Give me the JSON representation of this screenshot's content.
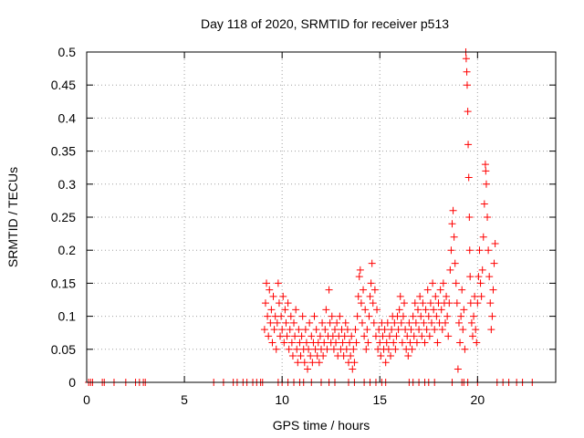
{
  "chart_data": {
    "type": "scatter",
    "title": "Day 118 of 2020, SRMTID for receiver p513",
    "xlabel": "GPS time / hours",
    "ylabel": "SRMTID / TECUs",
    "xlim": [
      0,
      24
    ],
    "ylim": [
      0,
      0.5
    ],
    "x_ticks": [
      0,
      5,
      10,
      15,
      20
    ],
    "x_tick_labels": [
      "0",
      "5",
      "10",
      "15",
      "20"
    ],
    "y_ticks": [
      0,
      0.05,
      0.1,
      0.15,
      0.2,
      0.25,
      0.3,
      0.35,
      0.4,
      0.45,
      0.5
    ],
    "y_tick_labels": [
      "0",
      "0.05",
      "0.1",
      "0.15",
      "0.2",
      "0.25",
      "0.3",
      "0.35",
      "0.4",
      "0.45",
      "0.5"
    ],
    "grid": true,
    "marker": "+",
    "series_color": "#ff0000",
    "series": [
      {
        "name": "SRMTID",
        "points": [
          [
            0.1,
            0
          ],
          [
            0.2,
            0
          ],
          [
            0.3,
            0
          ],
          [
            0.8,
            0
          ],
          [
            0.9,
            0
          ],
          [
            1.4,
            0
          ],
          [
            2.0,
            0
          ],
          [
            2.5,
            0
          ],
          [
            2.7,
            0
          ],
          [
            2.9,
            0
          ],
          [
            3.0,
            0
          ],
          [
            6.5,
            0
          ],
          [
            7.0,
            0
          ],
          [
            7.5,
            0
          ],
          [
            7.7,
            0
          ],
          [
            8.0,
            0
          ],
          [
            8.2,
            0
          ],
          [
            8.5,
            0
          ],
          [
            8.7,
            0
          ],
          [
            8.9,
            0
          ],
          [
            9.0,
            0
          ],
          [
            9.8,
            0
          ],
          [
            10.0,
            0
          ],
          [
            10.3,
            0
          ],
          [
            10.6,
            0
          ],
          [
            10.9,
            0
          ],
          [
            11.1,
            0
          ],
          [
            11.5,
            0
          ],
          [
            12.0,
            0
          ],
          [
            12.4,
            0
          ],
          [
            12.7,
            0
          ],
          [
            13.4,
            0
          ],
          [
            13.7,
            0
          ],
          [
            14.2,
            0
          ],
          [
            14.5,
            0
          ],
          [
            14.8,
            0
          ],
          [
            15.1,
            0
          ],
          [
            15.3,
            0
          ],
          [
            16.5,
            0
          ],
          [
            16.7,
            0
          ],
          [
            17.0,
            0
          ],
          [
            17.3,
            0
          ],
          [
            17.5,
            0
          ],
          [
            17.8,
            0
          ],
          [
            18.7,
            0
          ],
          [
            19.2,
            0
          ],
          [
            19.3,
            0
          ],
          [
            19.5,
            0
          ],
          [
            20.0,
            0
          ],
          [
            21.0,
            0
          ],
          [
            21.3,
            0
          ],
          [
            21.6,
            0
          ],
          [
            22.0,
            0
          ],
          [
            22.3,
            0
          ],
          [
            22.8,
            0
          ],
          [
            9.1,
            0.08
          ],
          [
            9.15,
            0.12
          ],
          [
            9.2,
            0.15
          ],
          [
            9.25,
            0.1
          ],
          [
            9.3,
            0.07
          ],
          [
            9.35,
            0.14
          ],
          [
            9.4,
            0.09
          ],
          [
            9.45,
            0.11
          ],
          [
            9.5,
            0.06
          ],
          [
            9.55,
            0.13
          ],
          [
            9.6,
            0.08
          ],
          [
            9.65,
            0.1
          ],
          [
            9.7,
            0.05
          ],
          [
            9.75,
            0.09
          ],
          [
            9.8,
            0.15
          ],
          [
            9.85,
            0.12
          ],
          [
            9.9,
            0.07
          ],
          [
            9.95,
            0.1
          ],
          [
            10.0,
            0.08
          ],
          [
            10.05,
            0.13
          ],
          [
            10.1,
            0.06
          ],
          [
            10.15,
            0.11
          ],
          [
            10.2,
            0.09
          ],
          [
            10.25,
            0.07
          ],
          [
            10.3,
            0.12
          ],
          [
            10.35,
            0.05
          ],
          [
            10.4,
            0.08
          ],
          [
            10.45,
            0.1
          ],
          [
            10.5,
            0.06
          ],
          [
            10.55,
            0.04
          ],
          [
            10.6,
            0.09
          ],
          [
            10.65,
            0.07
          ],
          [
            10.7,
            0.11
          ],
          [
            10.75,
            0.05
          ],
          [
            10.8,
            0.03
          ],
          [
            10.85,
            0.08
          ],
          [
            10.9,
            0.06
          ],
          [
            10.95,
            0.04
          ],
          [
            11.0,
            0.07
          ],
          [
            11.05,
            0.1
          ],
          [
            11.1,
            0.05
          ],
          [
            11.15,
            0.03
          ],
          [
            11.2,
            0.08
          ],
          [
            11.25,
            0.06
          ],
          [
            11.3,
            0.02
          ],
          [
            11.35,
            0.05
          ],
          [
            11.4,
            0.09
          ],
          [
            11.45,
            0.04
          ],
          [
            11.5,
            0.07
          ],
          [
            11.55,
            0.03
          ],
          [
            11.6,
            0.06
          ],
          [
            11.65,
            0.1
          ],
          [
            11.7,
            0.05
          ],
          [
            11.75,
            0.08
          ],
          [
            11.8,
            0.04
          ],
          [
            11.85,
            0.06
          ],
          [
            11.9,
            0.03
          ],
          [
            11.95,
            0.07
          ],
          [
            12.0,
            0.05
          ],
          [
            12.05,
            0.09
          ],
          [
            12.1,
            0.04
          ],
          [
            12.15,
            0.06
          ],
          [
            12.2,
            0.08
          ],
          [
            12.25,
            0.11
          ],
          [
            12.3,
            0.05
          ],
          [
            12.35,
            0.07
          ],
          [
            12.4,
            0.14
          ],
          [
            12.45,
            0.09
          ],
          [
            12.5,
            0.06
          ],
          [
            12.55,
            0.1
          ],
          [
            12.6,
            0.07
          ],
          [
            12.65,
            0.05
          ],
          [
            12.7,
            0.08
          ],
          [
            12.75,
            0.06
          ],
          [
            12.8,
            0.09
          ],
          [
            12.85,
            0.04
          ],
          [
            12.9,
            0.07
          ],
          [
            12.95,
            0.1
          ],
          [
            13.0,
            0.05
          ],
          [
            13.05,
            0.08
          ],
          [
            13.1,
            0.06
          ],
          [
            13.15,
            0.04
          ],
          [
            13.2,
            0.07
          ],
          [
            13.25,
            0.09
          ],
          [
            13.3,
            0.05
          ],
          [
            13.35,
            0.08
          ],
          [
            13.4,
            0.03
          ],
          [
            13.45,
            0.06
          ],
          [
            13.5,
            0.04
          ],
          [
            13.55,
            0.07
          ],
          [
            13.6,
            0.02
          ],
          [
            13.65,
            0.05
          ],
          [
            13.7,
            0.03
          ],
          [
            13.75,
            0.08
          ],
          [
            13.8,
            0.06
          ],
          [
            13.85,
            0.1
          ],
          [
            13.9,
            0.13
          ],
          [
            13.95,
            0.16
          ],
          [
            14.0,
            0.17
          ],
          [
            14.05,
            0.12
          ],
          [
            14.1,
            0.09
          ],
          [
            14.15,
            0.14
          ],
          [
            14.2,
            0.07
          ],
          [
            14.25,
            0.11
          ],
          [
            14.3,
            0.05
          ],
          [
            14.35,
            0.08
          ],
          [
            14.4,
            0.06
          ],
          [
            14.45,
            0.1
          ],
          [
            14.5,
            0.13
          ],
          [
            14.55,
            0.15
          ],
          [
            14.6,
            0.18
          ],
          [
            14.65,
            0.12
          ],
          [
            14.7,
            0.09
          ],
          [
            14.75,
            0.14
          ],
          [
            14.8,
            0.07
          ],
          [
            14.85,
            0.11
          ],
          [
            14.9,
            0.05
          ],
          [
            14.95,
            0.08
          ],
          [
            15.0,
            0.06
          ],
          [
            15.05,
            0.04
          ],
          [
            15.1,
            0.09
          ],
          [
            15.15,
            0.07
          ],
          [
            15.2,
            0.05
          ],
          [
            15.25,
            0.08
          ],
          [
            15.3,
            0.03
          ],
          [
            15.35,
            0.06
          ],
          [
            15.4,
            0.09
          ],
          [
            15.45,
            0.05
          ],
          [
            15.5,
            0.07
          ],
          [
            15.55,
            0.04
          ],
          [
            15.6,
            0.08
          ],
          [
            15.65,
            0.1
          ],
          [
            15.7,
            0.06
          ],
          [
            15.75,
            0.09
          ],
          [
            15.8,
            0.05
          ],
          [
            15.85,
            0.07
          ],
          [
            15.9,
            0.1
          ],
          [
            15.95,
            0.08
          ],
          [
            16.0,
            0.11
          ],
          [
            16.05,
            0.13
          ],
          [
            16.1,
            0.09
          ],
          [
            16.15,
            0.06
          ],
          [
            16.2,
            0.1
          ],
          [
            16.25,
            0.12
          ],
          [
            16.3,
            0.08
          ],
          [
            16.35,
            0.05
          ],
          [
            16.4,
            0.07
          ],
          [
            16.45,
            0.04
          ],
          [
            16.5,
            0.09
          ],
          [
            16.55,
            0.06
          ],
          [
            16.6,
            0.08
          ],
          [
            16.65,
            0.05
          ],
          [
            16.7,
            0.1
          ],
          [
            16.75,
            0.07
          ],
          [
            16.8,
            0.12
          ],
          [
            16.85,
            0.09
          ],
          [
            16.9,
            0.06
          ],
          [
            16.95,
            0.11
          ],
          [
            17.0,
            0.08
          ],
          [
            17.05,
            0.13
          ],
          [
            17.1,
            0.1
          ],
          [
            17.15,
            0.07
          ],
          [
            17.2,
            0.12
          ],
          [
            17.25,
            0.09
          ],
          [
            17.3,
            0.06
          ],
          [
            17.35,
            0.11
          ],
          [
            17.4,
            0.08
          ],
          [
            17.45,
            0.14
          ],
          [
            17.5,
            0.1
          ],
          [
            17.55,
            0.07
          ],
          [
            17.6,
            0.12
          ],
          [
            17.65,
            0.09
          ],
          [
            17.7,
            0.15
          ],
          [
            17.75,
            0.11
          ],
          [
            17.8,
            0.08
          ],
          [
            17.85,
            0.13
          ],
          [
            17.9,
            0.1
          ],
          [
            17.95,
            0.06
          ],
          [
            18.0,
            0.12
          ],
          [
            18.05,
            0.09
          ],
          [
            18.1,
            0.14
          ],
          [
            18.15,
            0.11
          ],
          [
            18.2,
            0.08
          ],
          [
            18.25,
            0.15
          ],
          [
            18.3,
            0.12
          ],
          [
            18.35,
            0.09
          ],
          [
            18.4,
            0.13
          ],
          [
            18.45,
            0.1
          ],
          [
            18.5,
            0.07
          ],
          [
            18.55,
            0.12
          ],
          [
            18.6,
            0.17
          ],
          [
            18.65,
            0.2
          ],
          [
            18.7,
            0.24
          ],
          [
            18.75,
            0.26
          ],
          [
            18.8,
            0.22
          ],
          [
            18.85,
            0.18
          ],
          [
            18.9,
            0.15
          ],
          [
            18.95,
            0.12
          ],
          [
            19.0,
            0.02
          ],
          [
            19.05,
            0.09
          ],
          [
            19.1,
            0.06
          ],
          [
            19.15,
            0.1
          ],
          [
            19.2,
            0.14
          ],
          [
            19.25,
            0.08
          ],
          [
            19.3,
            0.11
          ],
          [
            19.35,
            0.05
          ],
          [
            19.4,
            0.5
          ],
          [
            19.42,
            0.49
          ],
          [
            19.45,
            0.47
          ],
          [
            19.47,
            0.45
          ],
          [
            19.5,
            0.41
          ],
          [
            19.52,
            0.36
          ],
          [
            19.55,
            0.31
          ],
          [
            19.58,
            0.25
          ],
          [
            19.6,
            0.2
          ],
          [
            19.62,
            0.16
          ],
          [
            19.65,
            0.12
          ],
          [
            19.7,
            0.09
          ],
          [
            19.75,
            0.07
          ],
          [
            19.8,
            0.1
          ],
          [
            19.85,
            0.13
          ],
          [
            19.9,
            0.08
          ],
          [
            19.95,
            0.06
          ],
          [
            20.0,
            0.12
          ],
          [
            20.05,
            0.16
          ],
          [
            20.1,
            0.2
          ],
          [
            20.15,
            0.15
          ],
          [
            20.2,
            0.13
          ],
          [
            20.25,
            0.17
          ],
          [
            20.3,
            0.22
          ],
          [
            20.35,
            0.27
          ],
          [
            20.4,
            0.33
          ],
          [
            20.42,
            0.32
          ],
          [
            20.45,
            0.3
          ],
          [
            20.5,
            0.25
          ],
          [
            20.55,
            0.2
          ],
          [
            20.6,
            0.16
          ],
          [
            20.65,
            0.12
          ],
          [
            20.7,
            0.08
          ],
          [
            20.75,
            0.1
          ],
          [
            20.8,
            0.14
          ],
          [
            20.85,
            0.18
          ],
          [
            20.9,
            0.21
          ]
        ]
      }
    ]
  }
}
